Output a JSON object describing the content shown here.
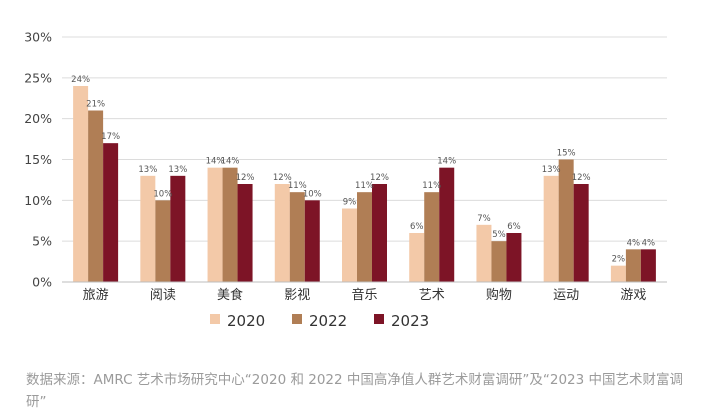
{
  "chart_data": {
    "type": "bar",
    "categories": [
      "旅游",
      "阅读",
      "美食",
      "影视",
      "音乐",
      "艺术",
      "购物",
      "运动",
      "游戏"
    ],
    "series": [
      {
        "name": "2020",
        "color": "#f3c9a8",
        "values": [
          24,
          13,
          14,
          12,
          9,
          6,
          7,
          13,
          2
        ],
        "labels": [
          "24%",
          "13%",
          "14%",
          "12%",
          "9%",
          "6%",
          "7%",
          "13%",
          "2%"
        ]
      },
      {
        "name": "2022",
        "color": "#b07e55",
        "values": [
          21,
          10,
          14,
          11,
          11,
          11,
          5,
          15,
          4
        ],
        "labels": [
          "21%",
          "10%",
          "14%",
          "11%",
          "11%",
          "11%",
          "5%",
          "15%",
          "4%"
        ]
      },
      {
        "name": "2023",
        "color": "#7d1426",
        "values": [
          17,
          13,
          12,
          10,
          12,
          14,
          6,
          12,
          4
        ],
        "labels": [
          "17%",
          "13%",
          "12%",
          "10%",
          "12%",
          "14%",
          "6%",
          "12%",
          "4%"
        ]
      }
    ],
    "yticks": [
      0,
      5,
      10,
      15,
      20,
      25,
      30
    ],
    "ytick_labels": [
      "0%",
      "5%",
      "10%",
      "15%",
      "20%",
      "25%",
      "30%"
    ],
    "ylim": [
      0,
      30
    ],
    "grid": true,
    "legend": "bottom-center"
  },
  "source_note": "数据来源：AMRC 艺术市场研究中心“2020 和 2022 中国高净值人群艺术财富调研”及“2023 中国艺术财富调研”"
}
